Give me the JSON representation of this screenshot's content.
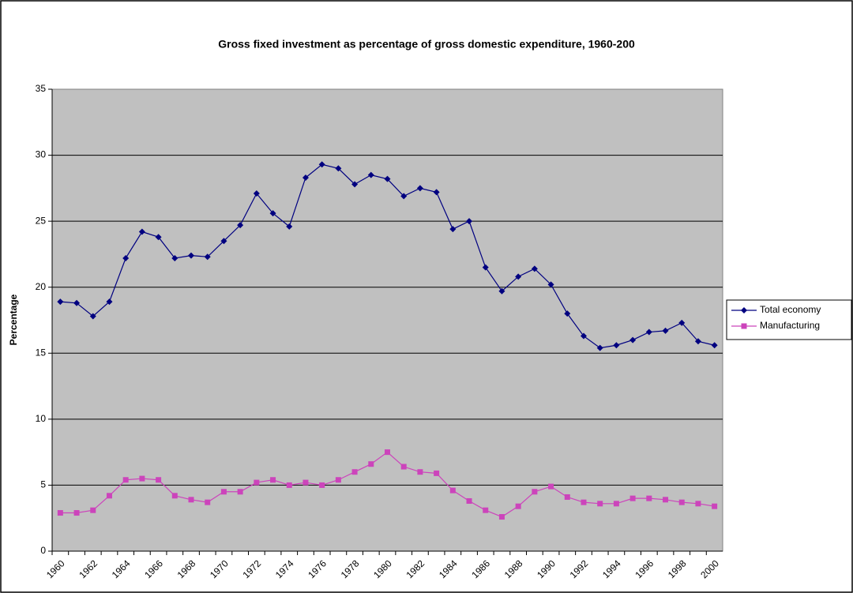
{
  "chart_data": {
    "type": "line",
    "title": "Gross fixed investment as percentage of gross domestic expenditure, 1960-200",
    "y_label": "Percentage",
    "categories": [
      "1960",
      null,
      "1962",
      null,
      "1964",
      null,
      "1966",
      null,
      "1968",
      null,
      "1970",
      null,
      "1972",
      null,
      "1974",
      null,
      "1976",
      null,
      "1978",
      null,
      "1980",
      null,
      "1982",
      null,
      "1984",
      null,
      "1986",
      null,
      "1988",
      null,
      "1990",
      null,
      "1992",
      null,
      "1994",
      null,
      "1996",
      null,
      "1998",
      null,
      "2000"
    ],
    "series": [
      {
        "name": "Total economy",
        "color": "#000080",
        "marker": "diamond",
        "values": [
          18.9,
          18.8,
          17.8,
          18.9,
          22.2,
          24.2,
          23.8,
          22.2,
          22.4,
          22.3,
          23.5,
          24.7,
          27.1,
          25.6,
          24.6,
          28.3,
          29.3,
          29.0,
          27.8,
          28.5,
          28.2,
          26.9,
          27.5,
          27.2,
          24.4,
          25.0,
          21.5,
          19.7,
          20.8,
          21.4,
          20.2,
          18.0,
          16.3,
          15.4,
          15.6,
          16.0,
          16.6,
          16.7,
          17.3,
          15.9,
          15.6
        ]
      },
      {
        "name": "Manufacturing",
        "color": "#cc44bb",
        "marker": "square",
        "values": [
          2.9,
          2.9,
          3.1,
          4.2,
          5.4,
          5.5,
          5.4,
          4.2,
          3.9,
          3.7,
          4.5,
          4.5,
          5.2,
          5.4,
          5.0,
          5.2,
          5.0,
          5.4,
          6.0,
          6.6,
          7.5,
          6.4,
          6.0,
          5.9,
          4.6,
          3.8,
          3.1,
          2.6,
          3.4,
          4.5,
          4.9,
          4.1,
          3.7,
          3.6,
          3.6,
          4.0,
          4.0,
          3.9,
          3.7,
          3.6,
          3.4
        ]
      }
    ],
    "ylim": [
      0,
      35
    ],
    "yticks": [
      0,
      5,
      10,
      15,
      20,
      25,
      30,
      35
    ],
    "grid": true,
    "legend": "right"
  }
}
